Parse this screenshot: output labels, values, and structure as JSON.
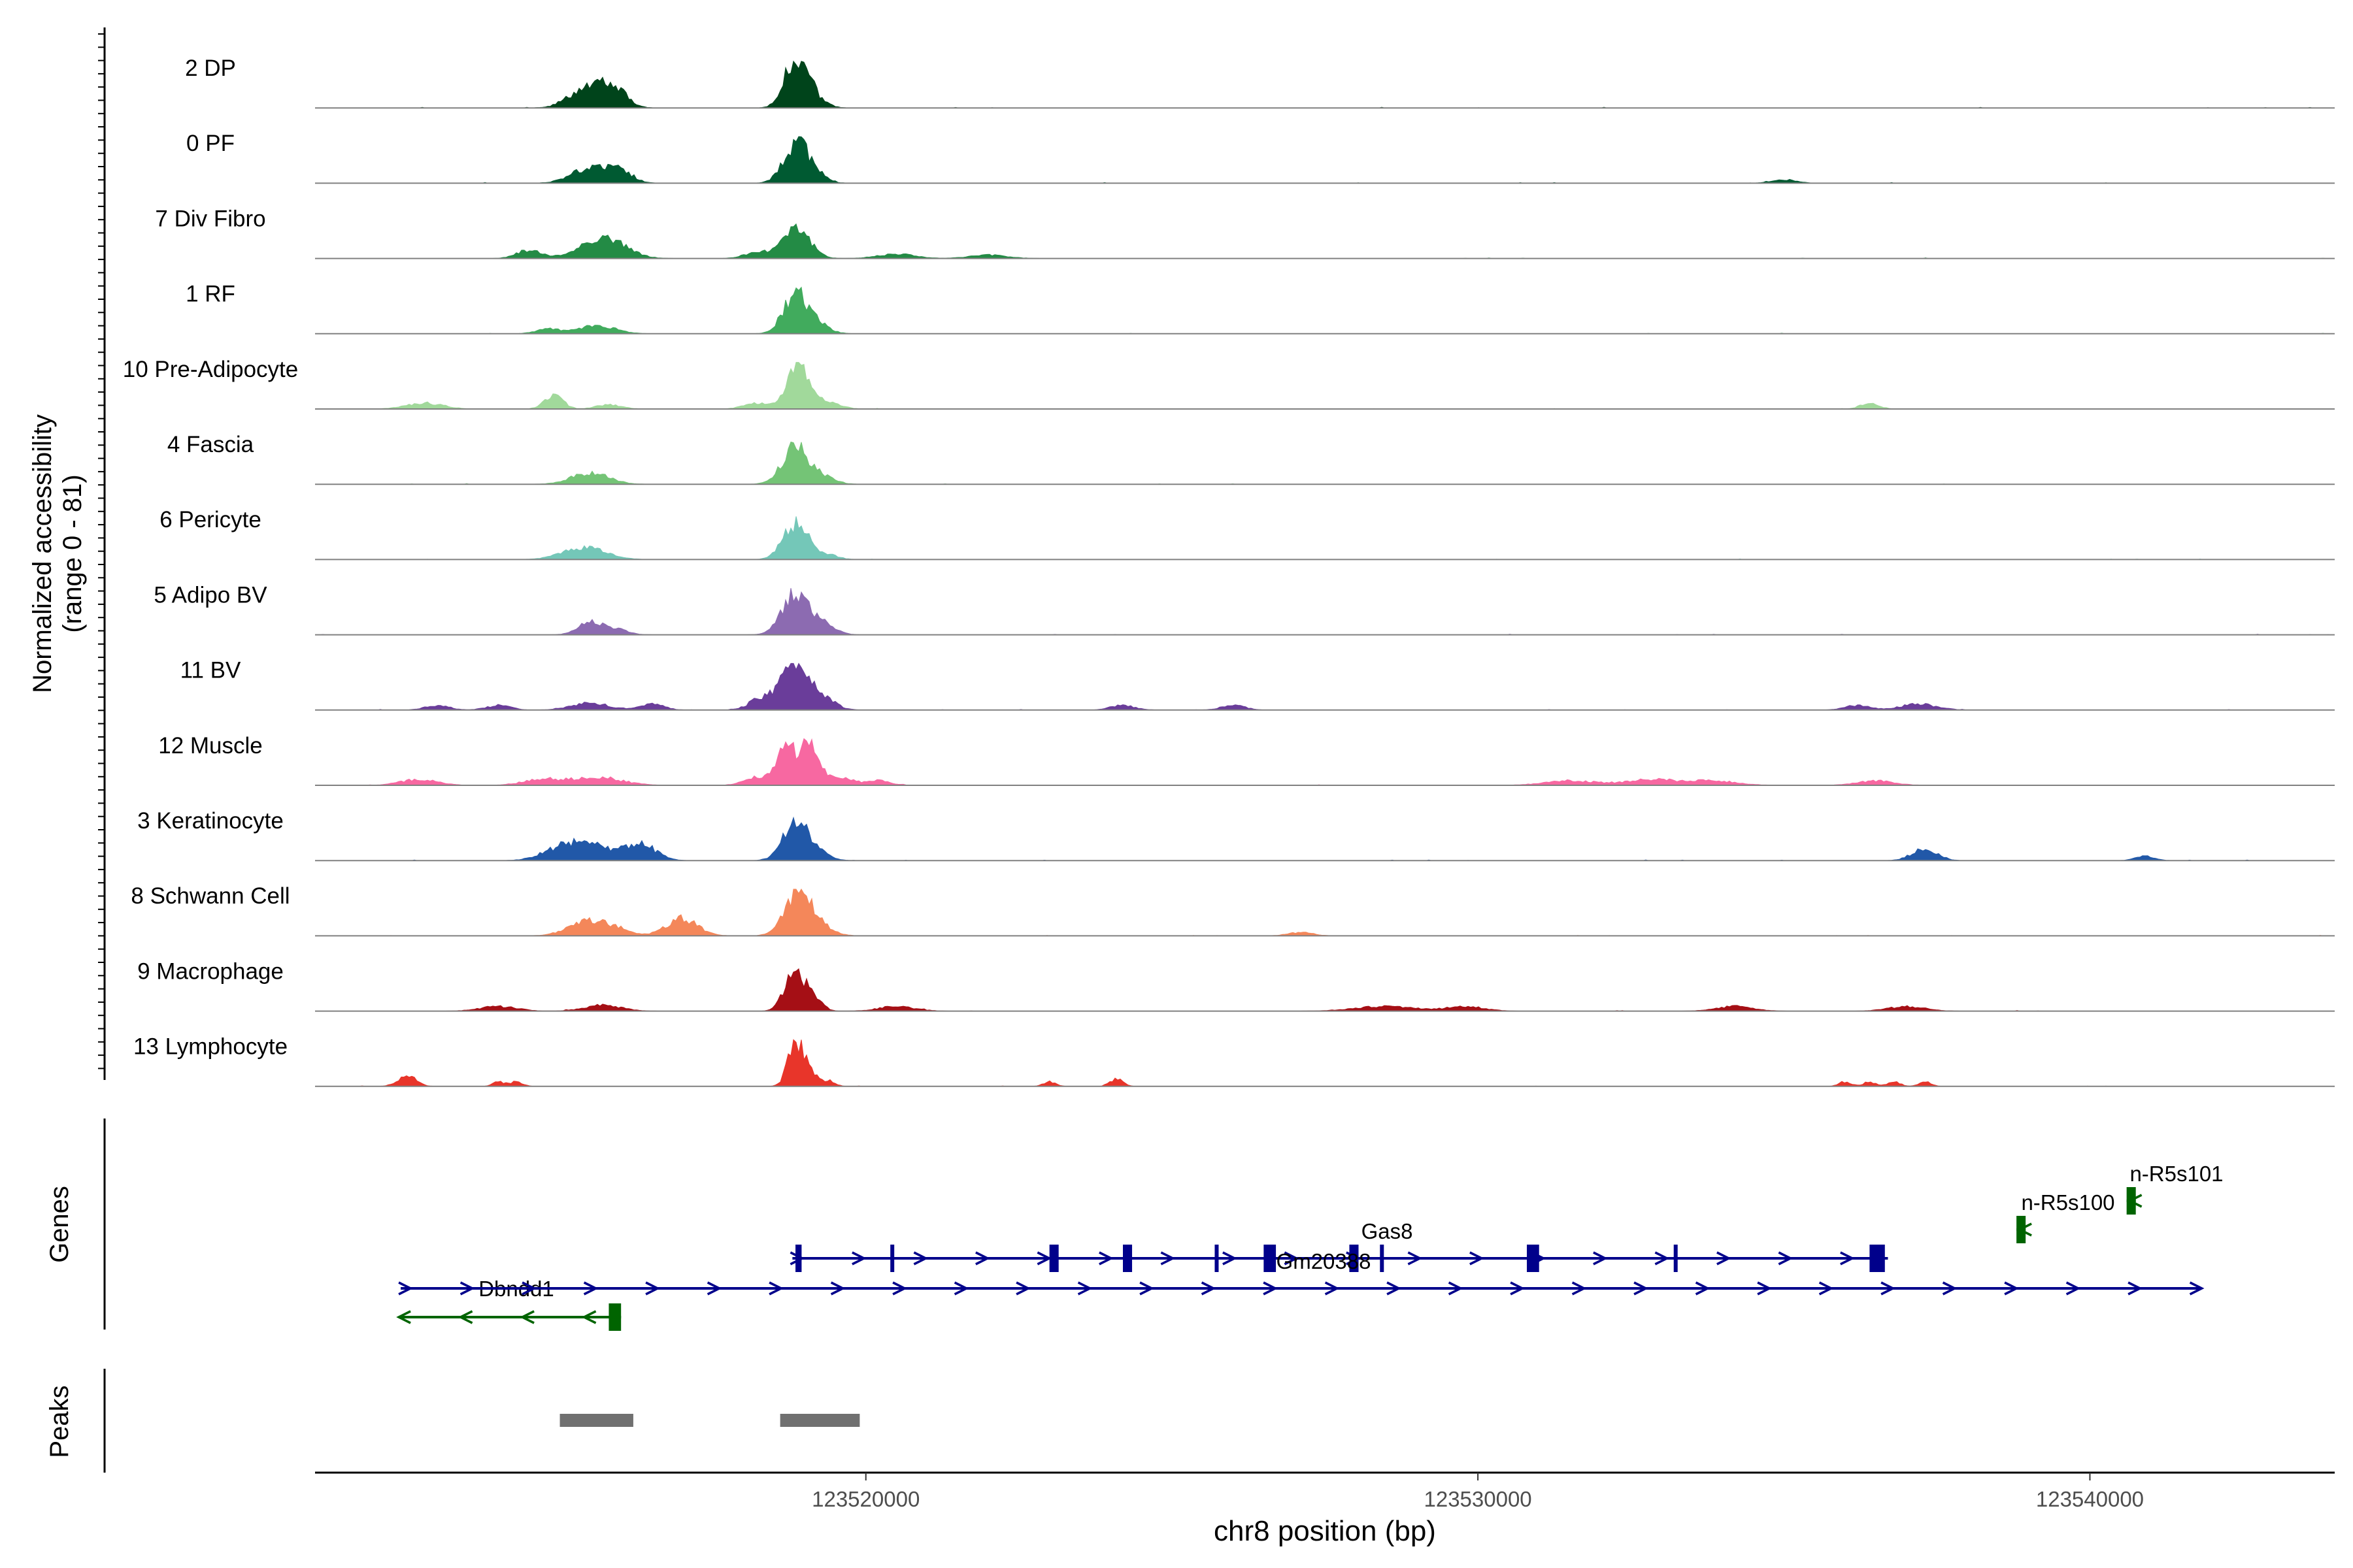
{
  "chart_data": {
    "type": "area",
    "title": "",
    "ylabel_line1": "Normalized accessibility",
    "ylabel_line2": "(range 0 - 81)",
    "ylim": [
      0,
      81
    ],
    "xlabel": "chr8 position (bp)",
    "xlim": [
      123511000,
      123544000
    ],
    "xticks": [
      123520000,
      123530000,
      123540000
    ],
    "xtick_labels": [
      "123520000",
      "123530000",
      "123540000"
    ],
    "panel_labels": {
      "genes": "Genes",
      "peaks": "Peaks"
    },
    "series": [
      {
        "name": "2 DP",
        "color": "#00441b",
        "peaks": [
          [
            123515500,
            40,
            300
          ],
          [
            123515900,
            26,
            200
          ],
          [
            123518850,
            80,
            180
          ],
          [
            123519100,
            20,
            200
          ]
        ]
      },
      {
        "name": "0 PF",
        "color": "#005a32",
        "peaks": [
          [
            123515500,
            26,
            300
          ],
          [
            123516000,
            18,
            200
          ],
          [
            123518850,
            60,
            200
          ],
          [
            123519100,
            18,
            200
          ],
          [
            123535000,
            6,
            200
          ]
        ]
      },
      {
        "name": "7 Div Fibro",
        "color": "#238b45",
        "peaks": [
          [
            123514500,
            14,
            200
          ],
          [
            123515700,
            38,
            350
          ],
          [
            123518200,
            10,
            200
          ],
          [
            123518850,
            56,
            220
          ],
          [
            123520500,
            8,
            300
          ],
          [
            123522000,
            6,
            300
          ]
        ]
      },
      {
        "name": "1 RF",
        "color": "#41ab5d",
        "peaks": [
          [
            123514800,
            8,
            200
          ],
          [
            123515600,
            14,
            300
          ],
          [
            123518850,
            66,
            200
          ],
          [
            123519200,
            14,
            200
          ]
        ]
      },
      {
        "name": "10 Pre-Adipocyte",
        "color": "#a1d99b",
        "peaks": [
          [
            123512800,
            10,
            300
          ],
          [
            123514900,
            24,
            150
          ],
          [
            123515800,
            8,
            200
          ],
          [
            123518200,
            10,
            200
          ],
          [
            123518900,
            70,
            200
          ],
          [
            123519400,
            10,
            200
          ],
          [
            123536400,
            10,
            150
          ]
        ]
      },
      {
        "name": "4 Fascia",
        "color": "#74c476",
        "peaks": [
          [
            123515500,
            20,
            300
          ],
          [
            123518850,
            62,
            220
          ],
          [
            123519300,
            12,
            200
          ]
        ]
      },
      {
        "name": "6 Pericyte",
        "color": "#74c7b8",
        "peaks": [
          [
            123515400,
            20,
            350
          ],
          [
            123518850,
            60,
            200
          ],
          [
            123519300,
            10,
            200
          ]
        ]
      },
      {
        "name": "5 Adipo BV",
        "color": "#8c6bb1",
        "peaks": [
          [
            123515500,
            22,
            200
          ],
          [
            123515900,
            10,
            200
          ],
          [
            123518850,
            72,
            220
          ],
          [
            123519300,
            16,
            200
          ]
        ]
      },
      {
        "name": "11 BV",
        "color": "#6a3d9a",
        "peaks": [
          [
            123513000,
            8,
            200
          ],
          [
            123514000,
            8,
            200
          ],
          [
            123515500,
            12,
            300
          ],
          [
            123516500,
            10,
            200
          ],
          [
            123518300,
            20,
            200
          ],
          [
            123518850,
            80,
            220
          ],
          [
            123519300,
            20,
            200
          ],
          [
            123524200,
            8,
            200
          ],
          [
            123526000,
            8,
            200
          ],
          [
            123536200,
            8,
            200
          ],
          [
            123537200,
            10,
            300
          ]
        ]
      },
      {
        "name": "12 Muscle",
        "color": "#f768a1",
        "peaks": [
          [
            123512700,
            10,
            300
          ],
          [
            123514700,
            10,
            300
          ],
          [
            123515600,
            14,
            400
          ],
          [
            123518200,
            14,
            200
          ],
          [
            123518700,
            70,
            150
          ],
          [
            123519100,
            74,
            150
          ],
          [
            123519600,
            12,
            200
          ],
          [
            123520200,
            8,
            200
          ],
          [
            123531500,
            8,
            400
          ],
          [
            123532800,
            10,
            400
          ],
          [
            123533800,
            8,
            400
          ],
          [
            123536500,
            8,
            300
          ]
        ]
      },
      {
        "name": "3 Keratinocyte",
        "color": "#2158a8",
        "peaks": [
          [
            123515000,
            20,
            300
          ],
          [
            123515500,
            26,
            300
          ],
          [
            123516300,
            30,
            250
          ],
          [
            123518850,
            64,
            200
          ],
          [
            123519200,
            12,
            200
          ],
          [
            123537300,
            22,
            200
          ],
          [
            123540900,
            8,
            150
          ]
        ]
      },
      {
        "name": "8 Schwann Cell",
        "color": "#f4875a",
        "peaks": [
          [
            123515400,
            20,
            300
          ],
          [
            123515800,
            14,
            300
          ],
          [
            123517000,
            30,
            250
          ],
          [
            123518900,
            76,
            220
          ],
          [
            123519300,
            12,
            200
          ],
          [
            123527100,
            6,
            200
          ]
        ]
      },
      {
        "name": "9 Macrophage",
        "color": "#a50f15",
        "peaks": [
          [
            123514000,
            8,
            300
          ],
          [
            123515700,
            10,
            300
          ],
          [
            123518800,
            60,
            150
          ],
          [
            123519100,
            30,
            150
          ],
          [
            123520500,
            8,
            300
          ],
          [
            123528500,
            8,
            500
          ],
          [
            123529800,
            8,
            300
          ],
          [
            123534200,
            8,
            300
          ],
          [
            123537000,
            8,
            300
          ]
        ]
      },
      {
        "name": "13 Lymphocyte",
        "color": "#e8352a",
        "peaks": [
          [
            123512500,
            18,
            150
          ],
          [
            123514000,
            8,
            100
          ],
          [
            123514300,
            8,
            100
          ],
          [
            123518850,
            80,
            120
          ],
          [
            123519100,
            25,
            100
          ],
          [
            123519400,
            10,
            100
          ],
          [
            123523000,
            8,
            100
          ],
          [
            123524100,
            14,
            100
          ],
          [
            123536000,
            8,
            100
          ],
          [
            123536400,
            8,
            100
          ],
          [
            123536800,
            8,
            100
          ],
          [
            123537300,
            8,
            100
          ]
        ]
      }
    ],
    "genes": [
      {
        "name": "Dbndd1",
        "strand": "-",
        "start": 123512400,
        "end": 123516000,
        "color": "#006400",
        "exons": [
          [
            123515800,
            123516000
          ]
        ]
      },
      {
        "name": "Gas8",
        "strand": "+",
        "start": 123518800,
        "end": 123536700,
        "color": "#00008b",
        "exons": [
          [
            123518850,
            123518950
          ],
          [
            123520400,
            123520450
          ],
          [
            123523000,
            123523150
          ],
          [
            123524200,
            123524350
          ],
          [
            123525700,
            123525750
          ],
          [
            123526500,
            123526700
          ],
          [
            123527900,
            123528050
          ],
          [
            123528400,
            123528450
          ],
          [
            123530800,
            123531000
          ],
          [
            123533200,
            123533250
          ],
          [
            123536400,
            123536650
          ]
        ]
      },
      {
        "name": "Gm20388",
        "strand": "+",
        "start": 123512400,
        "end": 123541800,
        "color": "#00008b",
        "exons": []
      },
      {
        "name": "n-R5s100",
        "strand": "-",
        "start": 123538800,
        "end": 123538950,
        "color": "#006400",
        "exons": [
          [
            123538800,
            123538950
          ]
        ]
      },
      {
        "name": "n-R5s101",
        "strand": "-",
        "start": 123540600,
        "end": 123540750,
        "color": "#006400",
        "exons": [
          [
            123540600,
            123540750
          ]
        ]
      }
    ],
    "peaks": [
      [
        123515000,
        123516200
      ],
      [
        123518600,
        123519900
      ]
    ]
  }
}
